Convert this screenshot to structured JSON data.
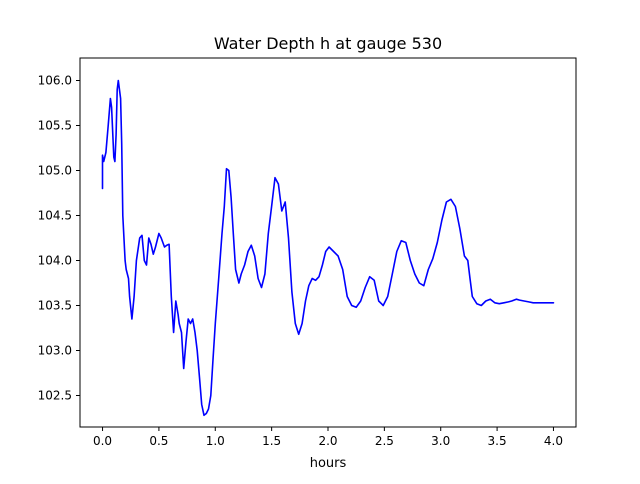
{
  "chart_data": {
    "type": "line",
    "title": "Water Depth h at gauge 530",
    "xlabel": "hours",
    "ylabel": "",
    "xlim": [
      -0.2,
      4.2
    ],
    "ylim": [
      102.15,
      106.25
    ],
    "xticks": [
      0.0,
      0.5,
      1.0,
      1.5,
      2.0,
      2.5,
      3.0,
      3.5,
      4.0
    ],
    "xtick_labels": [
      "0.0",
      "0.5",
      "1.0",
      "1.5",
      "2.0",
      "2.5",
      "3.0",
      "3.5",
      "4.0"
    ],
    "yticks": [
      102.5,
      103.0,
      103.5,
      104.0,
      104.5,
      105.0,
      105.5,
      106.0
    ],
    "ytick_labels": [
      "102.5",
      "103.0",
      "103.5",
      "104.0",
      "104.5",
      "105.0",
      "105.5",
      "106.0"
    ],
    "grid": false,
    "series": [
      {
        "color": "#0000ff",
        "x": [
          0.0,
          0.0,
          0.01,
          0.03,
          0.05,
          0.07,
          0.08,
          0.1,
          0.11,
          0.12,
          0.13,
          0.14,
          0.16,
          0.17,
          0.18,
          0.2,
          0.21,
          0.23,
          0.24,
          0.26,
          0.28,
          0.3,
          0.33,
          0.35,
          0.37,
          0.39,
          0.41,
          0.43,
          0.45,
          0.47,
          0.5,
          0.52,
          0.55,
          0.57,
          0.59,
          0.61,
          0.63,
          0.65,
          0.67,
          0.68,
          0.7,
          0.72,
          0.74,
          0.76,
          0.78,
          0.8,
          0.82,
          0.84,
          0.86,
          0.88,
          0.9,
          0.92,
          0.94,
          0.96,
          0.98,
          1.0,
          1.03,
          1.06,
          1.08,
          1.1,
          1.12,
          1.14,
          1.16,
          1.18,
          1.2,
          1.21,
          1.23,
          1.26,
          1.29,
          1.32,
          1.35,
          1.38,
          1.41,
          1.44,
          1.47,
          1.5,
          1.53,
          1.56,
          1.59,
          1.62,
          1.65,
          1.68,
          1.71,
          1.74,
          1.77,
          1.8,
          1.83,
          1.86,
          1.89,
          1.92,
          1.95,
          1.98,
          2.01,
          2.05,
          2.09,
          2.13,
          2.17,
          2.21,
          2.25,
          2.29,
          2.33,
          2.37,
          2.41,
          2.45,
          2.49,
          2.53,
          2.57,
          2.61,
          2.65,
          2.69,
          2.73,
          2.77,
          2.81,
          2.85,
          2.89,
          2.93,
          2.97,
          3.01,
          3.05,
          3.09,
          3.13,
          3.17,
          3.21,
          3.24,
          3.26,
          3.28,
          3.32,
          3.36,
          3.4,
          3.44,
          3.48,
          3.52,
          3.56,
          3.6,
          3.63,
          3.65,
          3.67,
          3.7,
          3.74,
          3.78,
          3.82,
          3.86,
          3.9,
          3.94,
          3.97,
          4.0
        ],
        "y": [
          104.8,
          105.17,
          105.1,
          105.2,
          105.5,
          105.8,
          105.7,
          105.15,
          105.1,
          105.4,
          105.9,
          106.0,
          105.8,
          105.3,
          104.5,
          104.0,
          103.9,
          103.8,
          103.6,
          103.35,
          103.6,
          104.0,
          104.25,
          104.28,
          104.0,
          103.95,
          104.25,
          104.18,
          104.07,
          104.15,
          104.3,
          104.25,
          104.15,
          104.17,
          104.18,
          103.6,
          103.2,
          103.55,
          103.4,
          103.3,
          103.2,
          102.8,
          103.1,
          103.35,
          103.3,
          103.35,
          103.2,
          103.0,
          102.7,
          102.4,
          102.28,
          102.3,
          102.35,
          102.5,
          102.9,
          103.3,
          103.8,
          104.3,
          104.6,
          105.02,
          105.0,
          104.7,
          104.3,
          103.9,
          103.8,
          103.75,
          103.85,
          103.95,
          104.1,
          104.17,
          104.05,
          103.8,
          103.7,
          103.85,
          104.3,
          104.6,
          104.92,
          104.85,
          104.55,
          104.65,
          104.25,
          103.65,
          103.3,
          103.18,
          103.3,
          103.55,
          103.72,
          103.8,
          103.78,
          103.82,
          103.95,
          104.1,
          104.15,
          104.1,
          104.05,
          103.9,
          103.6,
          103.5,
          103.48,
          103.55,
          103.7,
          103.82,
          103.78,
          103.55,
          103.5,
          103.6,
          103.85,
          104.1,
          104.22,
          104.2,
          104.0,
          103.85,
          103.75,
          103.72,
          103.9,
          104.02,
          104.2,
          104.45,
          104.65,
          104.68,
          104.6,
          104.35,
          104.05,
          104.0,
          103.8,
          103.6,
          103.52,
          103.5,
          103.55,
          103.57,
          103.53,
          103.52,
          103.53,
          103.54,
          103.55,
          103.56,
          103.57,
          103.56,
          103.55,
          103.54,
          103.53,
          103.53,
          103.53,
          103.53,
          103.53,
          103.53
        ]
      }
    ]
  }
}
